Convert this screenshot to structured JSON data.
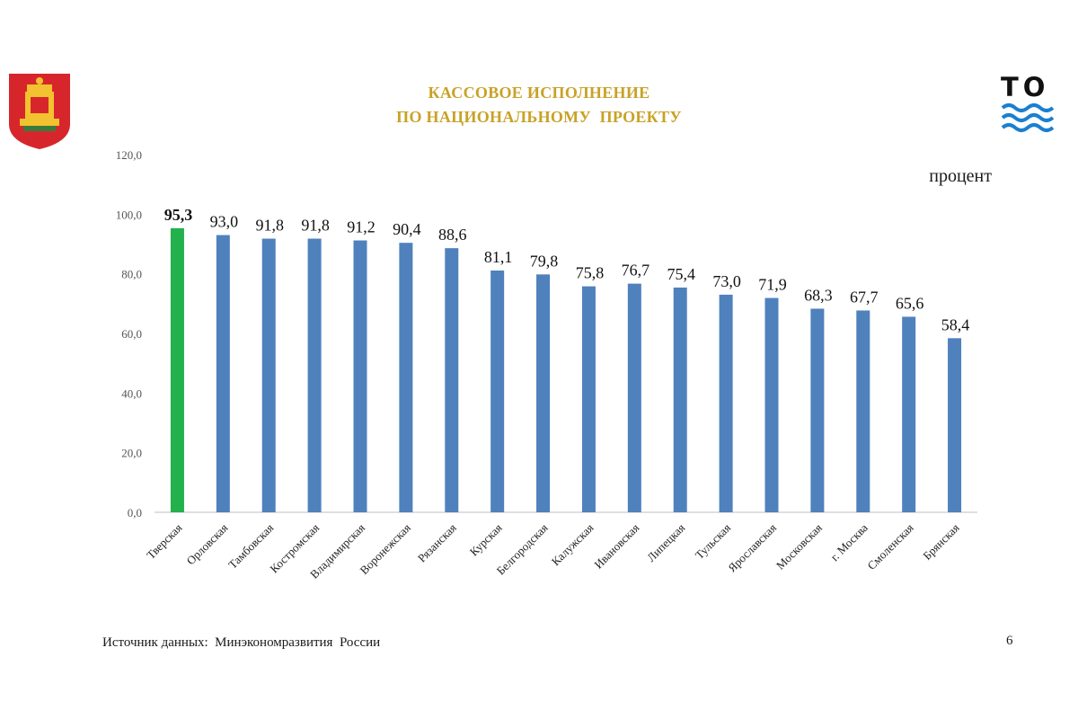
{
  "header": {
    "title_line1": "КАССОВОЕ ИСПОЛНЕНИЕ",
    "title_line2": "ПО НАЦИОНАЛЬНОМУ  ПРОЕКТУ",
    "unit": "процент"
  },
  "brand": {
    "text": "ТО",
    "logo": "wave-logo-icon",
    "emblem": "coat-of-arms-icon"
  },
  "footer": {
    "source": "Источник данных:  Минэкономразвития  России",
    "page": "6"
  },
  "colors": {
    "highlight": "#22b14c",
    "bar": "#4f81bd",
    "title": "#c8a227"
  },
  "chart_data": {
    "type": "bar",
    "categories": [
      "Тверская",
      "Орловская",
      "Тамбовская",
      "Костромская",
      "Владимирская",
      "Воронежская",
      "Рязанская",
      "Курская",
      "Белгородская",
      "Калужская",
      "Ивановская",
      "Липецкая",
      "Тульская",
      "Ярославская",
      "Московская",
      "г. Москва",
      "Смоленская",
      "Брянская"
    ],
    "values": [
      95.3,
      93.0,
      91.8,
      91.8,
      91.2,
      90.4,
      88.6,
      81.1,
      79.8,
      75.8,
      76.7,
      75.4,
      73.0,
      71.9,
      68.3,
      67.7,
      65.6,
      58.4
    ],
    "value_labels": [
      "95,3",
      "93,0",
      "91,8",
      "91,8",
      "91,2",
      "90,4",
      "88,6",
      "81,1",
      "79,8",
      "75,8",
      "76,7",
      "75,4",
      "73,0",
      "71,9",
      "68,3",
      "67,7",
      "65,6",
      "58,4"
    ],
    "yticks": [
      0,
      20,
      40,
      60,
      80,
      100,
      120
    ],
    "ytick_labels": [
      "0,0",
      "20,0",
      "40,0",
      "60,0",
      "80,0",
      "100,0",
      "120,0"
    ],
    "ylim": [
      0,
      120
    ],
    "highlight_index": 0,
    "grid": false
  }
}
